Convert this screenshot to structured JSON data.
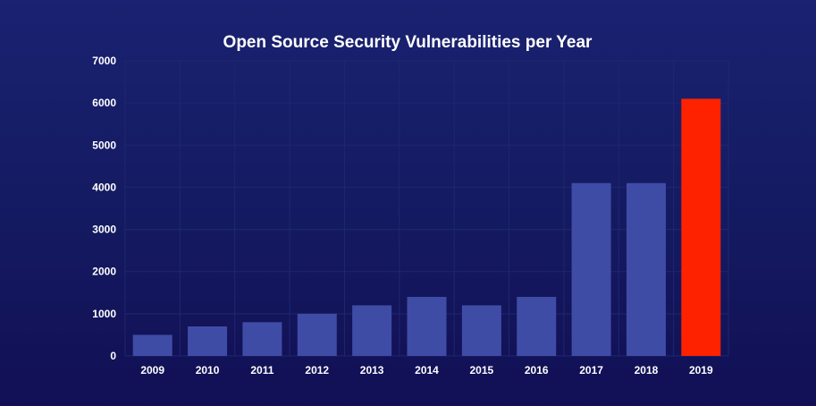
{
  "chart_data": {
    "type": "bar",
    "title": "Open Source Security Vulnerabilities per Year",
    "xlabel": "",
    "ylabel": "",
    "categories": [
      "2009",
      "2010",
      "2011",
      "2012",
      "2013",
      "2014",
      "2015",
      "2016",
      "2017",
      "2018",
      "2019"
    ],
    "values": [
      500,
      700,
      800,
      1000,
      1200,
      1400,
      1200,
      1400,
      4100,
      4100,
      6100
    ],
    "ylim": [
      0,
      7000
    ],
    "yticks": [
      0,
      1000,
      2000,
      3000,
      4000,
      5000,
      6000,
      7000
    ],
    "grid": true,
    "legend": "none",
    "colors": {
      "bar": "#3f4ca6",
      "highlight": "#ff2200",
      "highlight_category": "2019"
    }
  }
}
